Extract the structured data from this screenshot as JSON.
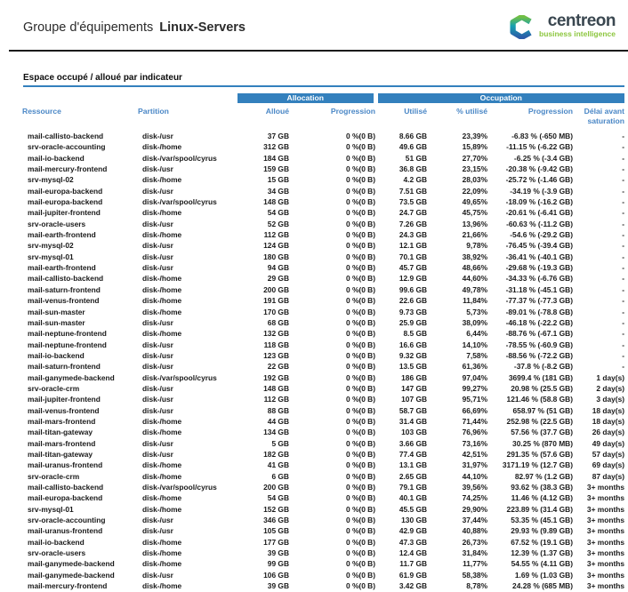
{
  "header": {
    "title_prefix": "Groupe d'équipements",
    "title_group": "Linux-Servers",
    "logo_brand": "centreon",
    "logo_tagline": "business intelligence"
  },
  "section": {
    "title": "Espace occupé / alloué par indicateur"
  },
  "table": {
    "group_headers": {
      "allocation": "Allocation",
      "occupation": "Occupation"
    },
    "columns": [
      "Ressource",
      "Partition",
      "Alloué",
      "Progression",
      "Utilisé",
      "% utilisé",
      "Progression",
      "Délai avant saturation"
    ],
    "rows": [
      [
        "mail-callisto-backend",
        "disk-/usr",
        "37 GB",
        "0 %(0 B)",
        "8.66 GB",
        "23,39%",
        "-6.83 % (-650 MB)",
        "-"
      ],
      [
        "srv-oracle-accounting",
        "disk-/home",
        "312 GB",
        "0 %(0 B)",
        "49.6 GB",
        "15,89%",
        "-11.15 % (-6.22 GB)",
        "-"
      ],
      [
        "mail-io-backend",
        "disk-/var/spool/cyrus",
        "184 GB",
        "0 %(0 B)",
        "51 GB",
        "27,70%",
        "-6.25 % (-3.4 GB)",
        "-"
      ],
      [
        "mail-mercury-frontend",
        "disk-/usr",
        "159 GB",
        "0 %(0 B)",
        "36.8 GB",
        "23,15%",
        "-20.38 % (-9.42 GB)",
        "-"
      ],
      [
        "srv-mysql-02",
        "disk-/home",
        "15 GB",
        "0 %(0 B)",
        "4.2 GB",
        "28,03%",
        "-25.72 % (-1.46 GB)",
        "-"
      ],
      [
        "mail-europa-backend",
        "disk-/usr",
        "34 GB",
        "0 %(0 B)",
        "7.51 GB",
        "22,09%",
        "-34.19 % (-3.9 GB)",
        "-"
      ],
      [
        "mail-europa-backend",
        "disk-/var/spool/cyrus",
        "148 GB",
        "0 %(0 B)",
        "73.5 GB",
        "49,65%",
        "-18.09 % (-16.2 GB)",
        "-"
      ],
      [
        "mail-jupiter-frontend",
        "disk-/home",
        "54 GB",
        "0 %(0 B)",
        "24.7 GB",
        "45,75%",
        "-20.61 % (-6.41 GB)",
        "-"
      ],
      [
        "srv-oracle-users",
        "disk-/usr",
        "52 GB",
        "0 %(0 B)",
        "7.26 GB",
        "13,96%",
        "-60.63 % (-11.2 GB)",
        "-"
      ],
      [
        "mail-earth-frontend",
        "disk-/home",
        "112 GB",
        "0 %(0 B)",
        "24.3 GB",
        "21,66%",
        "-54.6 % (-29.2 GB)",
        "-"
      ],
      [
        "srv-mysql-02",
        "disk-/usr",
        "124 GB",
        "0 %(0 B)",
        "12.1 GB",
        "9,78%",
        "-76.45 % (-39.4 GB)",
        "-"
      ],
      [
        "srv-mysql-01",
        "disk-/usr",
        "180 GB",
        "0 %(0 B)",
        "70.1 GB",
        "38,92%",
        "-36.41 % (-40.1 GB)",
        "-"
      ],
      [
        "mail-earth-frontend",
        "disk-/usr",
        "94 GB",
        "0 %(0 B)",
        "45.7 GB",
        "48,66%",
        "-29.68 % (-19.3 GB)",
        "-"
      ],
      [
        "mail-callisto-backend",
        "disk-/home",
        "29 GB",
        "0 %(0 B)",
        "12.9 GB",
        "44,60%",
        "-34.33 % (-6.76 GB)",
        "-"
      ],
      [
        "mail-saturn-frontend",
        "disk-/home",
        "200 GB",
        "0 %(0 B)",
        "99.6 GB",
        "49,78%",
        "-31.18 % (-45.1 GB)",
        "-"
      ],
      [
        "mail-venus-frontend",
        "disk-/home",
        "191 GB",
        "0 %(0 B)",
        "22.6 GB",
        "11,84%",
        "-77.37 % (-77.3 GB)",
        "-"
      ],
      [
        "mail-sun-master",
        "disk-/home",
        "170 GB",
        "0 %(0 B)",
        "9.73 GB",
        "5,73%",
        "-89.01 % (-78.8 GB)",
        "-"
      ],
      [
        "mail-sun-master",
        "disk-/usr",
        "68 GB",
        "0 %(0 B)",
        "25.9 GB",
        "38,09%",
        "-46.18 % (-22.2 GB)",
        "-"
      ],
      [
        "mail-neptune-frontend",
        "disk-/home",
        "132 GB",
        "0 %(0 B)",
        "8.5 GB",
        "6,44%",
        "-88.76 % (-67.1 GB)",
        "-"
      ],
      [
        "mail-neptune-frontend",
        "disk-/usr",
        "118 GB",
        "0 %(0 B)",
        "16.6 GB",
        "14,10%",
        "-78.55 % (-60.9 GB)",
        "-"
      ],
      [
        "mail-io-backend",
        "disk-/usr",
        "123 GB",
        "0 %(0 B)",
        "9.32 GB",
        "7,58%",
        "-88.56 % (-72.2 GB)",
        "-"
      ],
      [
        "mail-saturn-frontend",
        "disk-/usr",
        "22 GB",
        "0 %(0 B)",
        "13.5 GB",
        "61,36%",
        "-37.8 % (-8.2 GB)",
        "-"
      ],
      [
        "mail-ganymede-backend",
        "disk-/var/spool/cyrus",
        "192 GB",
        "0 %(0 B)",
        "186 GB",
        "97,04%",
        "3699.4 % (181 GB)",
        "1 day(s)"
      ],
      [
        "srv-oracle-crm",
        "disk-/usr",
        "148 GB",
        "0 %(0 B)",
        "147 GB",
        "99,27%",
        "20.98 % (25.5 GB)",
        "2 day(s)"
      ],
      [
        "mail-jupiter-frontend",
        "disk-/usr",
        "112 GB",
        "0 %(0 B)",
        "107 GB",
        "95,71%",
        "121.46 % (58.8 GB)",
        "3 day(s)"
      ],
      [
        "mail-venus-frontend",
        "disk-/usr",
        "88 GB",
        "0 %(0 B)",
        "58.7 GB",
        "66,69%",
        "658.97 % (51 GB)",
        "18 day(s)"
      ],
      [
        "mail-mars-frontend",
        "disk-/home",
        "44 GB",
        "0 %(0 B)",
        "31.4 GB",
        "71,44%",
        "252.98 % (22.5 GB)",
        "18 day(s)"
      ],
      [
        "mail-titan-gateway",
        "disk-/home",
        "134 GB",
        "0 %(0 B)",
        "103 GB",
        "76,96%",
        "57.56 % (37.7 GB)",
        "26 day(s)"
      ],
      [
        "mail-mars-frontend",
        "disk-/usr",
        "5 GB",
        "0 %(0 B)",
        "3.66 GB",
        "73,16%",
        "30.25 % (870 MB)",
        "49 day(s)"
      ],
      [
        "mail-titan-gateway",
        "disk-/usr",
        "182 GB",
        "0 %(0 B)",
        "77.4 GB",
        "42,51%",
        "291.35 % (57.6 GB)",
        "57 day(s)"
      ],
      [
        "mail-uranus-frontend",
        "disk-/home",
        "41 GB",
        "0 %(0 B)",
        "13.1 GB",
        "31,97%",
        "3171.19 % (12.7 GB)",
        "69 day(s)"
      ],
      [
        "srv-oracle-crm",
        "disk-/home",
        "6 GB",
        "0 %(0 B)",
        "2.65 GB",
        "44,10%",
        "82.97 % (1.2 GB)",
        "87 day(s)"
      ],
      [
        "mail-callisto-backend",
        "disk-/var/spool/cyrus",
        "200 GB",
        "0 %(0 B)",
        "79.1 GB",
        "39,56%",
        "93.62 % (38.3 GB)",
        "3+ months"
      ],
      [
        "mail-europa-backend",
        "disk-/home",
        "54 GB",
        "0 %(0 B)",
        "40.1 GB",
        "74,25%",
        "11.46 % (4.12 GB)",
        "3+ months"
      ],
      [
        "srv-mysql-01",
        "disk-/home",
        "152 GB",
        "0 %(0 B)",
        "45.5 GB",
        "29,90%",
        "223.89 % (31.4 GB)",
        "3+ months"
      ],
      [
        "srv-oracle-accounting",
        "disk-/usr",
        "346 GB",
        "0 %(0 B)",
        "130 GB",
        "37,44%",
        "53.35 % (45.1 GB)",
        "3+ months"
      ],
      [
        "mail-uranus-frontend",
        "disk-/usr",
        "105 GB",
        "0 %(0 B)",
        "42.9 GB",
        "40,88%",
        "29.93 % (9.89 GB)",
        "3+ months"
      ],
      [
        "mail-io-backend",
        "disk-/home",
        "177 GB",
        "0 %(0 B)",
        "47.3 GB",
        "26,73%",
        "67.52 % (19.1 GB)",
        "3+ months"
      ],
      [
        "srv-oracle-users",
        "disk-/home",
        "39 GB",
        "0 %(0 B)",
        "12.4 GB",
        "31,84%",
        "12.39 % (1.37 GB)",
        "3+ months"
      ],
      [
        "mail-ganymede-backend",
        "disk-/home",
        "99 GB",
        "0 %(0 B)",
        "11.7 GB",
        "11,77%",
        "54.55 % (4.11 GB)",
        "3+ months"
      ],
      [
        "mail-ganymede-backend",
        "disk-/usr",
        "106 GB",
        "0 %(0 B)",
        "61.9 GB",
        "58,38%",
        "1.69 % (1.03 GB)",
        "3+ months"
      ],
      [
        "mail-mercury-frontend",
        "disk-/home",
        "39 GB",
        "0 %(0 B)",
        "3.42 GB",
        "8,78%",
        "24.28 % (685 MB)",
        "3+ months"
      ]
    ]
  },
  "colors": {
    "accent_blue": "#3380BD",
    "header_text_blue": "#4A87C6",
    "brand_green": "#8CC63E",
    "brand_dark": "#3A4750",
    "logo_green": "#72BF44",
    "logo_teal": "#16A0B0",
    "logo_blue": "#2B5CA8",
    "text_dark": "#1A1A1A"
  }
}
